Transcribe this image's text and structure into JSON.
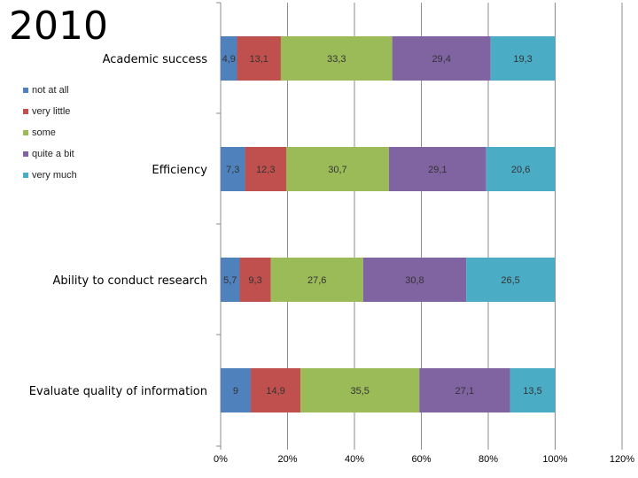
{
  "title": "2010",
  "chart_data": {
    "type": "bar",
    "orientation": "horizontal",
    "stacked": true,
    "categories": [
      "Academic success",
      "Efficiency",
      "Ability to conduct research",
      "Evaluate quality of information"
    ],
    "series": [
      {
        "name": "not at all",
        "color": "#4f81bd",
        "values": [
          4.9,
          7.3,
          5.7,
          9
        ]
      },
      {
        "name": "very little",
        "color": "#c0504d",
        "values": [
          13.1,
          12.3,
          9.3,
          14.9
        ]
      },
      {
        "name": "some",
        "color": "#9bbb59",
        "values": [
          33.3,
          30.7,
          27.6,
          35.5
        ]
      },
      {
        "name": "quite a bit",
        "color": "#8064a2",
        "values": [
          29.4,
          29.1,
          30.8,
          27.1
        ]
      },
      {
        "name": "very much",
        "color": "#4bacc6",
        "values": [
          19.3,
          20.6,
          26.5,
          13.5
        ]
      }
    ],
    "data_labels": [
      [
        "4,9",
        "13,1",
        "33,3",
        "29,4",
        "19,3"
      ],
      [
        "7,3",
        "12,3",
        "30,7",
        "29,1",
        "20,6"
      ],
      [
        "5,7",
        "9,3",
        "27,6",
        "30,8",
        "26,5"
      ],
      [
        "9",
        "14,9",
        "35,5",
        "27,1",
        "13,5"
      ]
    ],
    "xlim": [
      0,
      120
    ],
    "x_ticks": [
      0,
      20,
      40,
      60,
      80,
      100,
      120
    ],
    "x_tick_labels": [
      "0%",
      "20%",
      "40%",
      "60%",
      "80%",
      "100%",
      "120%"
    ],
    "grid": true,
    "legend_position": "left"
  }
}
